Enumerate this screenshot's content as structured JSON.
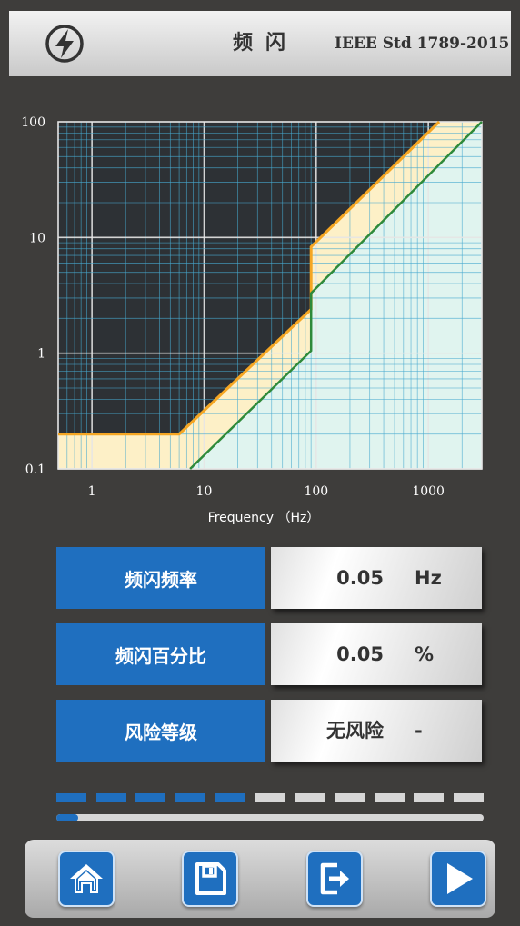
{
  "header": {
    "title": "频闪",
    "standard": "IEEE Std 1789-2015",
    "icon": "flash-icon"
  },
  "chart_data": {
    "type": "line",
    "x_scale": "log",
    "y_scale": "log",
    "xlim": [
      0.5,
      3000
    ],
    "ylim": [
      0.1,
      100
    ],
    "xlabel": "Frequency （Hz）",
    "ylabel": "",
    "x_ticks": [
      "1",
      "10",
      "100",
      "1000"
    ],
    "y_ticks": [
      "0.1",
      "1",
      "10",
      "100"
    ],
    "grid": true,
    "series": [
      {
        "role": "low-risk-boundary",
        "color": "#f5a623",
        "x": [
          0.5,
          6,
          90,
          90,
          1250
        ],
        "y": [
          0.2,
          0.2,
          2.4,
          8.3,
          100
        ]
      },
      {
        "role": "no-effect-boundary",
        "color": "#2f8a3a",
        "x": [
          7.5,
          90,
          90,
          3000
        ],
        "y": [
          0.1,
          1.05,
          3.3,
          100
        ]
      }
    ],
    "region_colors": {
      "unsafe": "#2d3135",
      "low_risk": "#fdf0c7",
      "no_effect": "#e0f4ef"
    }
  },
  "metrics": [
    {
      "label": "频闪频率",
      "value": "0.05",
      "unit": "Hz"
    },
    {
      "label": "频闪百分比",
      "value": "0.05",
      "unit": "%"
    },
    {
      "label": "风险等级",
      "value": "无风险",
      "unit": "-"
    }
  ],
  "progress": {
    "segments_total": 11,
    "segments_filled": 5,
    "bar_fraction": 0.05
  },
  "toolbar": {
    "buttons": [
      {
        "name": "home-button",
        "icon": "home-icon"
      },
      {
        "name": "save-button",
        "icon": "save-icon"
      },
      {
        "name": "export-button",
        "icon": "export-icon"
      },
      {
        "name": "play-button",
        "icon": "play-icon"
      }
    ]
  },
  "colors": {
    "accent": "#1f6fbf",
    "background": "#3e3d3b",
    "segment_off": "#d6d6d6"
  }
}
